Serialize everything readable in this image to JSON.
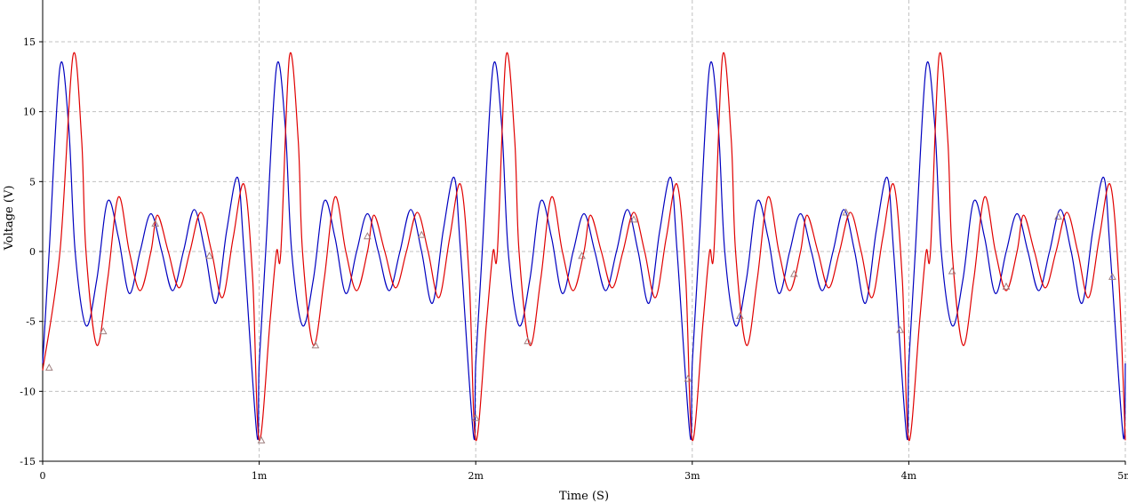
{
  "chart_data": {
    "type": "line",
    "xlabel": "Time (S)",
    "ylabel": "Voltage (V)",
    "xlim": [
      0,
      0.005
    ],
    "ylim": [
      -15,
      15
    ],
    "x_ticks": [
      0,
      0.001,
      0.002,
      0.003,
      0.004,
      0.005
    ],
    "x_tick_labels": [
      "0",
      "1m",
      "2m",
      "3m",
      "4m",
      "5m"
    ],
    "y_ticks": [
      -15,
      -10,
      -5,
      0,
      5,
      10,
      15
    ],
    "y_tick_labels": [
      "-15",
      "-10",
      "-5",
      "0",
      "5",
      "10",
      "15"
    ],
    "grid": true,
    "series": [
      {
        "color": "#0000c0",
        "period": 0.001,
        "samples": [
          [
            0,
            -8
          ],
          [
            3e-05,
            0
          ],
          [
            8e-05,
            13.2
          ],
          [
            0.00012,
            9
          ],
          [
            0.00015,
            0
          ],
          [
            0.0002,
            -5.3
          ],
          [
            0.00025,
            -2
          ],
          [
            0.0003,
            3.6
          ],
          [
            0.00035,
            1
          ],
          [
            0.0004,
            -3
          ],
          [
            0.00045,
            0
          ],
          [
            0.0005,
            2.7
          ],
          [
            0.00055,
            0
          ],
          [
            0.0006,
            -2.8
          ],
          [
            0.00065,
            0
          ],
          [
            0.0007,
            3
          ],
          [
            0.00075,
            0
          ],
          [
            0.0008,
            -3.7
          ],
          [
            0.00085,
            1.5
          ],
          [
            0.0009,
            5.3
          ],
          [
            0.00093,
            0
          ],
          [
            0.00099,
            -13.2
          ],
          [
            0.001,
            -8
          ]
        ]
      },
      {
        "color": "#e00000",
        "period": 0.001,
        "samples": [
          [
            0,
            -8.5
          ],
          [
            8e-05,
            0
          ],
          [
            0.00014,
            14
          ],
          [
            0.00018,
            8
          ],
          [
            0.0002,
            0
          ],
          [
            0.00025,
            -6.7
          ],
          [
            0.0003,
            -2
          ],
          [
            0.00035,
            3.9
          ],
          [
            0.0004,
            0
          ],
          [
            0.00045,
            -2.8
          ],
          [
            0.0005,
            0
          ],
          [
            0.00053,
            2.6
          ],
          [
            0.00058,
            0
          ],
          [
            0.00063,
            -2.6
          ],
          [
            0.00068,
            0
          ],
          [
            0.00073,
            2.8
          ],
          [
            0.00078,
            0
          ],
          [
            0.00083,
            -3.3
          ],
          [
            0.00088,
            1
          ],
          [
            0.00093,
            4.8
          ],
          [
            0.00097,
            -2
          ],
          [
            0.001,
            -13.5
          ],
          [
            0.00105,
            -5
          ],
          [
            0.0011,
            0
          ]
        ]
      }
    ],
    "markers": [
      [
        3e-05,
        -8.3
      ],
      [
        0.00028,
        -5.7
      ],
      [
        0.00052,
        2.0
      ],
      [
        0.00077,
        -0.3
      ],
      [
        0.00101,
        -13.5
      ],
      [
        0.00126,
        -6.7
      ],
      [
        0.0015,
        1.1
      ],
      [
        0.00175,
        1.2
      ],
      [
        0.002,
        -11.9
      ],
      [
        0.00224,
        -6.4
      ],
      [
        0.00249,
        -0.3
      ],
      [
        0.00273,
        2.3
      ],
      [
        0.00298,
        -9.1
      ],
      [
        0.00322,
        -4.6
      ],
      [
        0.00347,
        -1.6
      ],
      [
        0.00371,
        2.8
      ],
      [
        0.00396,
        -5.6
      ],
      [
        0.0042,
        -1.4
      ],
      [
        0.00445,
        -2.5
      ],
      [
        0.00469,
        2.5
      ],
      [
        0.00494,
        -1.8
      ]
    ],
    "marker_color": "#a08080"
  }
}
